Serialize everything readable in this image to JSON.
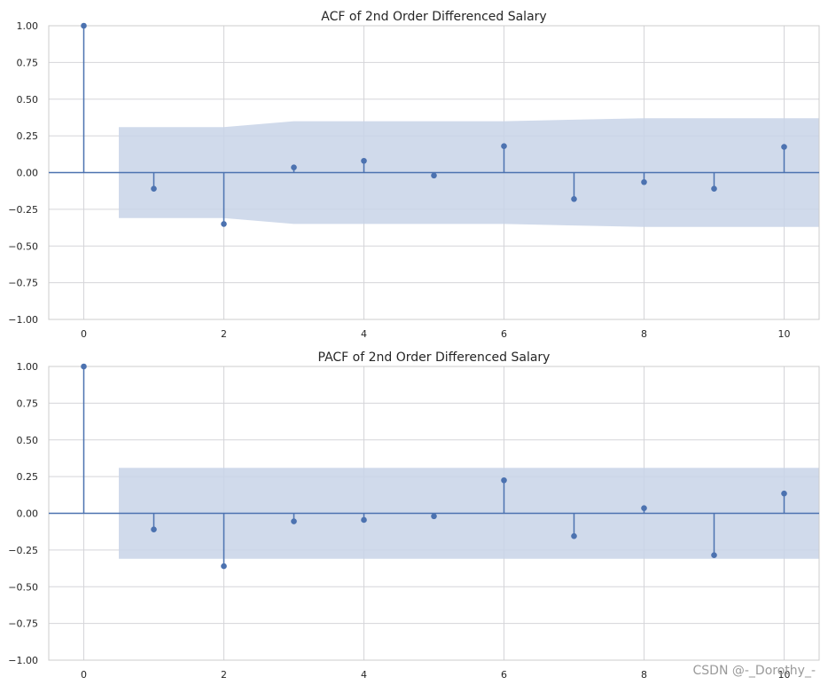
{
  "watermark": "CSDN @-_Dorothy_-",
  "colors": {
    "stem": "#4c72b0",
    "band": "#c8d4e8",
    "grid": "#d5d5d9",
    "axes_edge": "#cccccc",
    "text": "#262626"
  },
  "chart_data": [
    {
      "type": "stem",
      "title": "ACF of 2nd Order Differenced Salary",
      "xlabel": "",
      "ylabel": "",
      "xlim": [
        -0.5,
        10.5
      ],
      "ylim": [
        -1.0,
        1.0
      ],
      "xticks": [
        0,
        2,
        4,
        6,
        8,
        10
      ],
      "xtick_labels": [
        "0",
        "2",
        "4",
        "6",
        "8",
        "10"
      ],
      "yticks": [
        1.0,
        0.75,
        0.5,
        0.25,
        0.0,
        -0.25,
        -0.5,
        -0.75,
        -1.0
      ],
      "ytick_labels": [
        "1.00",
        "0.75",
        "0.50",
        "0.25",
        "0.00",
        "−0.25",
        "−0.50",
        "−0.75",
        "−1.00"
      ],
      "grid": true,
      "lags": [
        0,
        1,
        2,
        3,
        4,
        5,
        6,
        7,
        8,
        9,
        10
      ],
      "values": [
        1.0,
        -0.11,
        -0.35,
        0.035,
        0.08,
        -0.02,
        0.18,
        -0.18,
        -0.065,
        -0.11,
        0.175
      ],
      "confidence_band": {
        "x": [
          0.5,
          1,
          2,
          3,
          4,
          5,
          6,
          7,
          8,
          9,
          10,
          10.5
        ],
        "upper": [
          0.31,
          0.31,
          0.31,
          0.35,
          0.35,
          0.35,
          0.35,
          0.36,
          0.37,
          0.37,
          0.37,
          0.37
        ]
      }
    },
    {
      "type": "stem",
      "title": "PACF of 2nd Order Differenced Salary",
      "xlabel": "",
      "ylabel": "",
      "xlim": [
        -0.5,
        10.5
      ],
      "ylim": [
        -1.0,
        1.0
      ],
      "xticks": [
        0,
        2,
        4,
        6,
        8,
        10
      ],
      "xtick_labels": [
        "0",
        "2",
        "4",
        "6",
        "8",
        "10"
      ],
      "yticks": [
        1.0,
        0.75,
        0.5,
        0.25,
        0.0,
        -0.25,
        -0.5,
        -0.75,
        -1.0
      ],
      "ytick_labels": [
        "1.00",
        "0.75",
        "0.50",
        "0.25",
        "0.00",
        "−0.25",
        "−0.50",
        "−0.75",
        "−1.00"
      ],
      "grid": true,
      "lags": [
        0,
        1,
        2,
        3,
        4,
        5,
        6,
        7,
        8,
        9,
        10
      ],
      "values": [
        1.0,
        -0.11,
        -0.36,
        -0.055,
        -0.045,
        -0.02,
        0.225,
        -0.155,
        0.035,
        -0.285,
        0.135
      ],
      "confidence_band": {
        "x": [
          0.5,
          10.5
        ],
        "upper": [
          0.31,
          0.31
        ]
      }
    }
  ]
}
